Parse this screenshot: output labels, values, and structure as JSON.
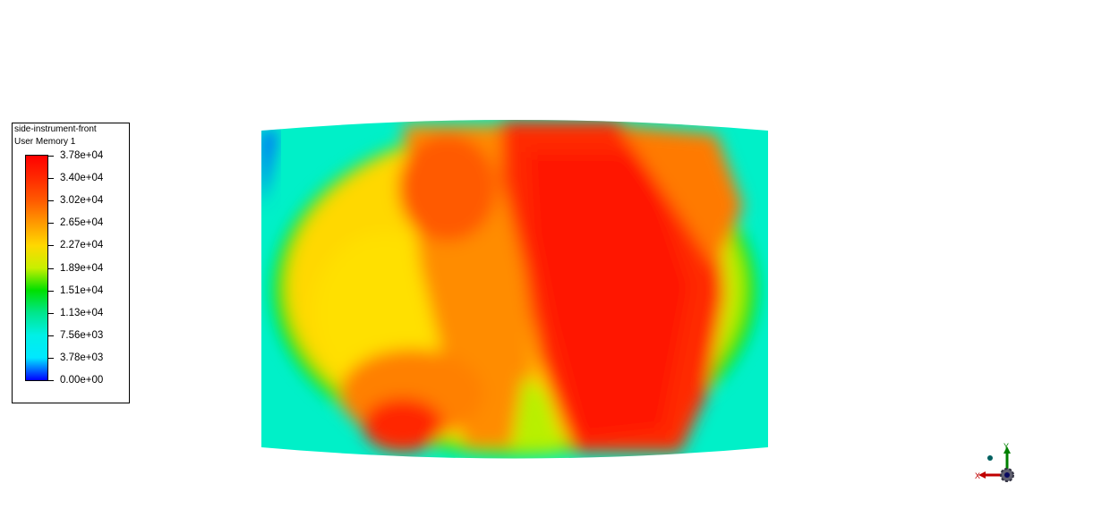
{
  "legend": {
    "title": "side-instrument-front",
    "subtitle": "User Memory 1",
    "max_value": 37800,
    "labels": [
      "3.78e+04",
      "3.40e+04",
      "3.02e+04",
      "2.65e+04",
      "2.27e+04",
      "1.89e+04",
      "1.51e+04",
      "1.13e+04",
      "7.56e+03",
      "3.78e+03",
      "0.00e+00"
    ],
    "colors": [
      "#ff0000",
      "#ff2a00",
      "#ff5a00",
      "#ff9a00",
      "#ffd800",
      "#c8f000",
      "#00e000",
      "#00e68c",
      "#00f0e6",
      "#00e8ff",
      "#0000ff"
    ]
  },
  "triad": {
    "x_label": "X",
    "y_label": "Y",
    "x_color": "#c00000",
    "y_color": "#008000"
  }
}
